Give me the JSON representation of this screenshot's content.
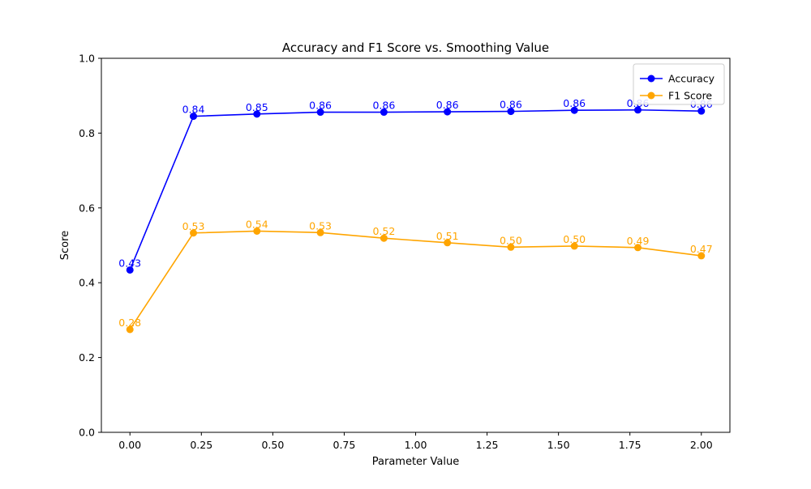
{
  "chart_data": {
    "type": "line",
    "title": "Accuracy and F1 Score vs. Smoothing Value",
    "xlabel": "Parameter Value",
    "ylabel": "Score",
    "xlim": [
      -0.1,
      2.1
    ],
    "ylim": [
      0.0,
      1.0
    ],
    "xticks": [
      0.0,
      0.25,
      0.5,
      0.75,
      1.0,
      1.25,
      1.5,
      1.75,
      2.0
    ],
    "xtick_labels": [
      "0.00",
      "0.25",
      "0.50",
      "0.75",
      "1.00",
      "1.25",
      "1.50",
      "1.75",
      "2.00"
    ],
    "yticks": [
      0.0,
      0.2,
      0.4,
      0.6,
      0.8,
      1.0
    ],
    "ytick_labels": [
      "0.0",
      "0.2",
      "0.4",
      "0.6",
      "0.8",
      "1.0"
    ],
    "grid": false,
    "legend_position": "top-right",
    "x": [
      0.0,
      0.2222,
      0.4444,
      0.6667,
      0.8889,
      1.1111,
      1.3333,
      1.5556,
      1.7778,
      2.0
    ],
    "series": [
      {
        "name": "Accuracy",
        "color": "#0000ff",
        "marker": "circle",
        "values": [
          0.434,
          0.845,
          0.851,
          0.856,
          0.856,
          0.857,
          0.858,
          0.861,
          0.862,
          0.859
        ],
        "labels": [
          "0.43",
          "0.84",
          "0.85",
          "0.86",
          "0.86",
          "0.86",
          "0.86",
          "0.86",
          "0.86",
          "0.86"
        ]
      },
      {
        "name": "F1 Score",
        "color": "#ffa500",
        "marker": "circle",
        "values": [
          0.275,
          0.533,
          0.538,
          0.534,
          0.519,
          0.507,
          0.495,
          0.498,
          0.494,
          0.472
        ],
        "labels": [
          "0.28",
          "0.53",
          "0.54",
          "0.53",
          "0.52",
          "0.51",
          "0.50",
          "0.50",
          "0.49",
          "0.47"
        ]
      }
    ]
  }
}
